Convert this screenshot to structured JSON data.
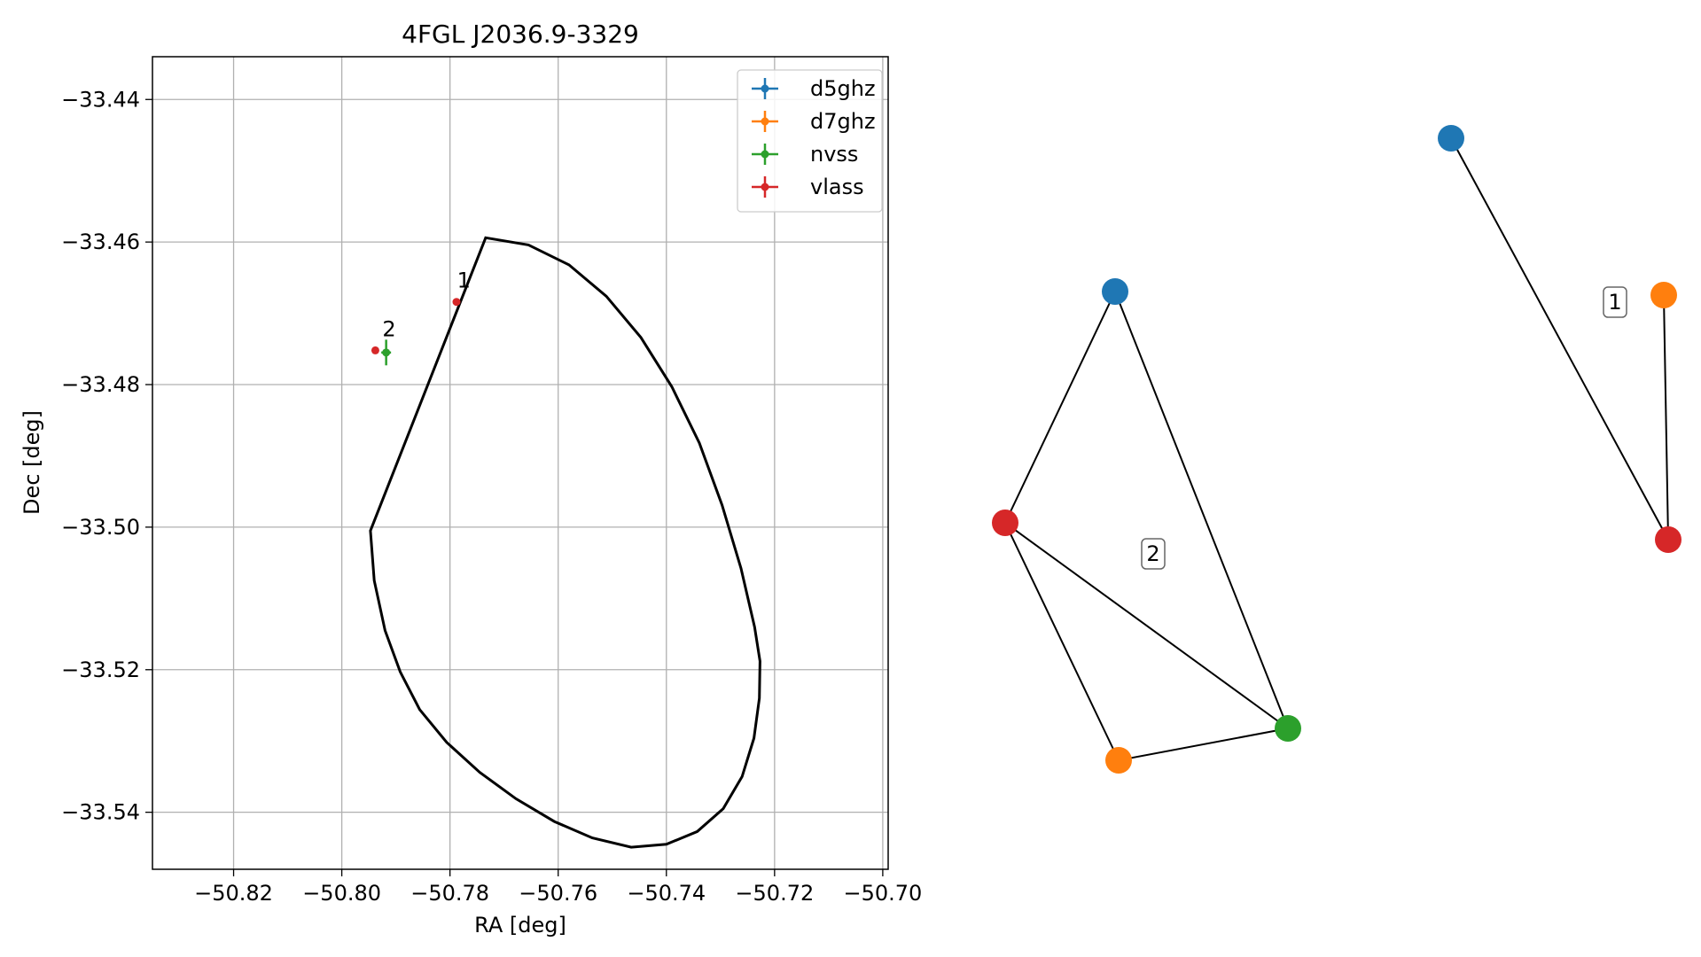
{
  "chart_data": [
    {
      "type": "scatter",
      "title": "4FGL J2036.9-3329",
      "xlabel": "RA [deg]",
      "ylabel": "Dec [deg]",
      "xlim": [
        -50.835,
        -50.699
      ],
      "ylim": [
        -33.548,
        -33.434
      ],
      "xticks": [
        -50.82,
        -50.8,
        -50.78,
        -50.76,
        -50.74,
        -50.72,
        -50.7
      ],
      "xtick_labels": [
        "−50.82",
        "−50.80",
        "−50.78",
        "−50.76",
        "−50.74",
        "−50.72",
        "−50.70"
      ],
      "yticks": [
        -33.44,
        -33.46,
        -33.48,
        -33.5,
        -33.52,
        -33.54
      ],
      "ytick_labels": [
        "−33.44",
        "−33.46",
        "−33.48",
        "−33.50",
        "−33.52",
        "−33.54"
      ],
      "grid": true,
      "legend_position": "top-right",
      "series": [
        {
          "name": "d5ghz",
          "color": "#1f77b4",
          "points": []
        },
        {
          "name": "d7ghz",
          "color": "#ff7f0e",
          "points": []
        },
        {
          "name": "nvss",
          "color": "#2ca02c",
          "points": [
            {
              "x": -50.7918,
              "y": -33.4755,
              "xerr": 0.0009,
              "yerr": 0.0018
            }
          ]
        },
        {
          "name": "vlass",
          "color": "#d62728",
          "points": [
            {
              "x": -50.7788,
              "y": -33.4684
            },
            {
              "x": -50.7938,
              "y": -33.4752
            }
          ]
        }
      ],
      "annotations": [
        {
          "text": "1",
          "x": -50.7787,
          "y": -33.4664
        },
        {
          "text": "2",
          "x": -50.7925,
          "y": -33.4732
        }
      ],
      "ellipse": {
        "color": "#000000",
        "points": [
          [
            -50.7734,
            -33.4594
          ],
          [
            -50.7655,
            -33.4604
          ],
          [
            -50.758,
            -33.4632
          ],
          [
            -50.7511,
            -33.4676
          ],
          [
            -50.7447,
            -33.4734
          ],
          [
            -50.739,
            -33.4803
          ],
          [
            -50.7339,
            -33.4882
          ],
          [
            -50.7297,
            -33.4969
          ],
          [
            -50.7262,
            -33.5058
          ],
          [
            -50.7237,
            -33.514
          ],
          [
            -50.7227,
            -33.5188
          ],
          [
            -50.7228,
            -33.524
          ],
          [
            -50.7238,
            -33.5296
          ],
          [
            -50.726,
            -33.535
          ],
          [
            -50.7295,
            -33.5395
          ],
          [
            -50.7343,
            -33.5427
          ],
          [
            -50.74,
            -33.5445
          ],
          [
            -50.7465,
            -33.5449
          ],
          [
            -50.7537,
            -33.5436
          ],
          [
            -50.7607,
            -33.5413
          ],
          [
            -50.7678,
            -33.5381
          ],
          [
            -50.7745,
            -33.5344
          ],
          [
            -50.7806,
            -33.5302
          ],
          [
            -50.7856,
            -33.5256
          ],
          [
            -50.7892,
            -33.5203
          ],
          [
            -50.792,
            -33.5145
          ],
          [
            -50.794,
            -33.5075
          ],
          [
            -50.7947,
            -33.5005
          ]
        ]
      }
    },
    {
      "type": "network",
      "groups": [
        {
          "label": "1",
          "nodes": [
            {
              "id": "d5ghz",
              "color": "#1f77b4"
            },
            {
              "id": "d7ghz",
              "color": "#ff7f0e"
            },
            {
              "id": "vlass",
              "color": "#d62728"
            }
          ],
          "edges": [
            [
              "d5ghz",
              "vlass"
            ],
            [
              "d7ghz",
              "vlass"
            ]
          ]
        },
        {
          "label": "2",
          "nodes": [
            {
              "id": "d5ghz",
              "color": "#1f77b4"
            },
            {
              "id": "vlass",
              "color": "#d62728"
            },
            {
              "id": "nvss",
              "color": "#2ca02c"
            },
            {
              "id": "d7ghz",
              "color": "#ff7f0e"
            }
          ],
          "edges": [
            [
              "d5ghz",
              "vlass"
            ],
            [
              "d5ghz",
              "nvss"
            ],
            [
              "vlass",
              "nvss"
            ],
            [
              "vlass",
              "d7ghz"
            ],
            [
              "d7ghz",
              "nvss"
            ]
          ]
        }
      ]
    }
  ]
}
